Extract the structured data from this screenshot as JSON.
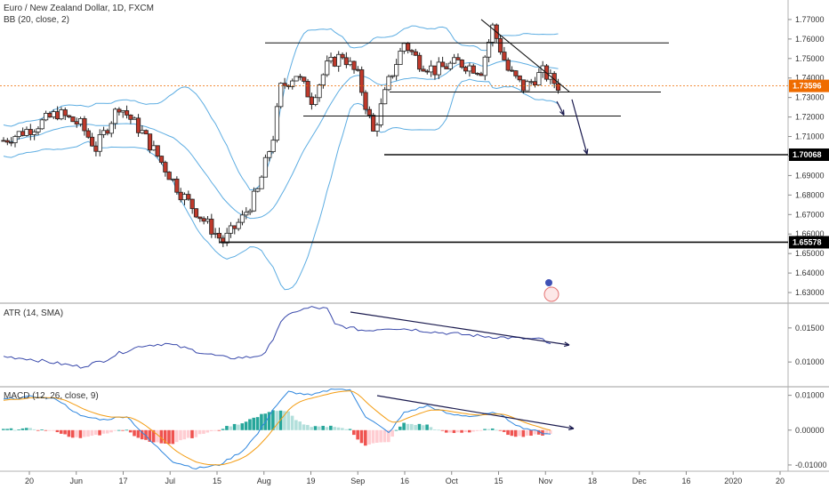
{
  "title": "Euro / New Zealand Dollar, 1D, FXCM",
  "colors": {
    "up": "#26a69a",
    "down": "#ef5350",
    "candle_body_up": "#ffffff",
    "candle_body_down": "#c0392b",
    "bb": "#5dade2",
    "atr": "#3949ab",
    "macd": "#2e86de",
    "signal": "#f39c12",
    "hist_up_strong": "#26a69a",
    "hist_up_weak": "#b2dfdb",
    "hist_down_strong": "#ef5350",
    "hist_down_weak": "#ffcdd2",
    "drawing": "#1a1a4e"
  },
  "chart_data": [
    {
      "type": "candlestick",
      "title": "Euro / New Zealand Dollar, 1D, FXCM",
      "indicator_label": "BB (20, close, 2)",
      "ylim": [
        1.625,
        1.78
      ],
      "y_ticks": [
        "1.77000",
        "1.76000",
        "1.75000",
        "1.74000",
        "1.73000",
        "1.72000",
        "1.71000",
        "1.70000",
        "1.69000",
        "1.68000",
        "1.67000",
        "1.66000",
        "1.65000",
        "1.64000",
        "1.63000"
      ],
      "price_labels": [
        {
          "value": 1.73596,
          "text": "1.73596",
          "color": "#ef6c00"
        },
        {
          "value": 1.70068,
          "text": "1.70068",
          "color": "#000000"
        },
        {
          "value": 1.65578,
          "text": "1.65578",
          "color": "#000000"
        }
      ],
      "x_ticks": [
        "20",
        "Jun",
        "17",
        "Jul",
        "15",
        "Aug",
        "19",
        "Sep",
        "16",
        "Oct",
        "15",
        "Nov",
        "18",
        "Dec",
        "16",
        "2020",
        "20"
      ]
    },
    {
      "type": "line",
      "title": "ATR (14, SMA)",
      "ylim": [
        0.0065,
        0.0185
      ],
      "y_ticks": [
        "0.01500",
        "0.01000"
      ]
    },
    {
      "type": "line",
      "title": "MACD (12, 26, close, 9)",
      "ylim": [
        -0.0118,
        0.0122
      ],
      "y_ticks": [
        "0.01000",
        "0.00000",
        "-0.01000"
      ]
    }
  ]
}
